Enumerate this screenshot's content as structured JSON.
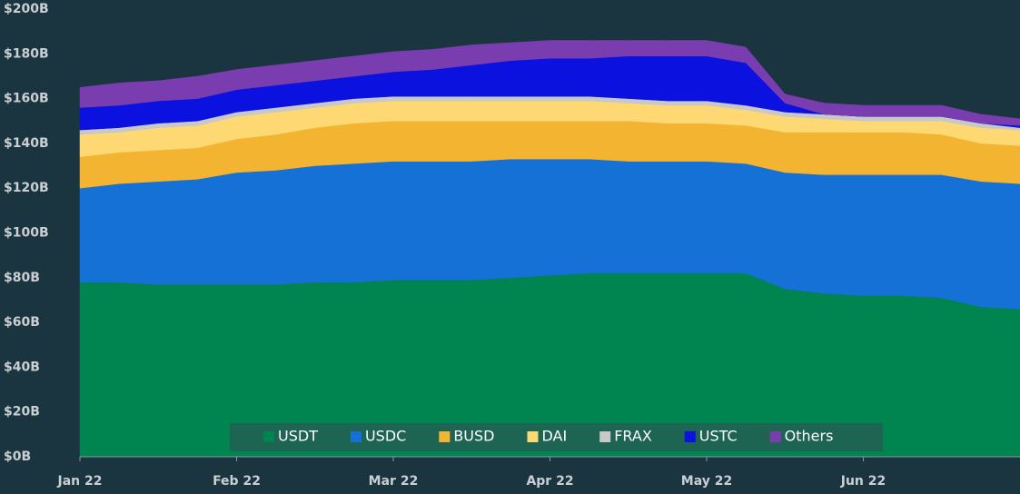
{
  "chart_data": {
    "type": "stacked_area",
    "categories": [
      "Jan 22",
      null,
      null,
      null,
      "Feb 22",
      null,
      null,
      null,
      "Mar 22",
      null,
      null,
      null,
      "Apr 22",
      null,
      null,
      null,
      "May 22",
      null,
      null,
      null,
      "Jun 22",
      null,
      null,
      null,
      null
    ],
    "series": [
      {
        "name": "USDT",
        "color": "#008450",
        "values": [
          78,
          78,
          77,
          77,
          77,
          77,
          78,
          78,
          79,
          79,
          79,
          80,
          81,
          82,
          82,
          82,
          82,
          82,
          75,
          73,
          72,
          72,
          71,
          67,
          66
        ]
      },
      {
        "name": "USDC",
        "color": "#1671d6",
        "values": [
          42,
          44,
          46,
          47,
          50,
          51,
          52,
          53,
          53,
          53,
          53,
          53,
          52,
          51,
          50,
          50,
          50,
          49,
          52,
          53,
          54,
          54,
          55,
          56,
          56
        ]
      },
      {
        "name": "BUSD",
        "color": "#f3b531",
        "values": [
          14,
          14,
          14,
          14,
          15,
          16,
          17,
          18,
          18,
          18,
          18,
          17,
          17,
          17,
          18,
          17,
          17,
          17,
          18,
          19,
          19,
          19,
          18,
          17,
          17
        ]
      },
      {
        "name": "DAI",
        "color": "#fdd873",
        "values": [
          10,
          9,
          10,
          10,
          10,
          10,
          9,
          9,
          9,
          9,
          9,
          9,
          9,
          9,
          8,
          8,
          8,
          7,
          7,
          6,
          5,
          5,
          6,
          7,
          7
        ]
      },
      {
        "name": "FRAX",
        "color": "#c8c8c8",
        "values": [
          2,
          2,
          2,
          2,
          2,
          2,
          2,
          2,
          2,
          2,
          2,
          2,
          2,
          2,
          2,
          2,
          2,
          2,
          2,
          2,
          2,
          2,
          2,
          2,
          1
        ]
      },
      {
        "name": "USTC",
        "color": "#0b12e0",
        "values": [
          10,
          10,
          10,
          10,
          10,
          10,
          10,
          10,
          11,
          12,
          14,
          16,
          17,
          17,
          19,
          20,
          20,
          19,
          4,
          0,
          0,
          0,
          0,
          0,
          1
        ]
      },
      {
        "name": "Others",
        "color": "#7a3db0",
        "values": [
          9,
          10,
          9,
          10,
          9,
          9,
          9,
          9,
          9,
          9,
          9,
          8,
          8,
          8,
          7,
          7,
          7,
          7,
          4,
          5,
          5,
          5,
          5,
          4,
          3
        ]
      }
    ],
    "ylim": [
      0,
      200
    ],
    "yticks": [
      {
        "value": 0,
        "label": "$0B"
      },
      {
        "value": 20,
        "label": "$20B"
      },
      {
        "value": 40,
        "label": "$40B"
      },
      {
        "value": 60,
        "label": "$60B"
      },
      {
        "value": 80,
        "label": "$80B"
      },
      {
        "value": 100,
        "label": "$100B"
      },
      {
        "value": 120,
        "label": "$120B"
      },
      {
        "value": 140,
        "label": "$140B"
      },
      {
        "value": 160,
        "label": "$160B"
      },
      {
        "value": 180,
        "label": "$180B"
      },
      {
        "value": 200,
        "label": "$200B"
      }
    ],
    "legend": "bottom"
  }
}
